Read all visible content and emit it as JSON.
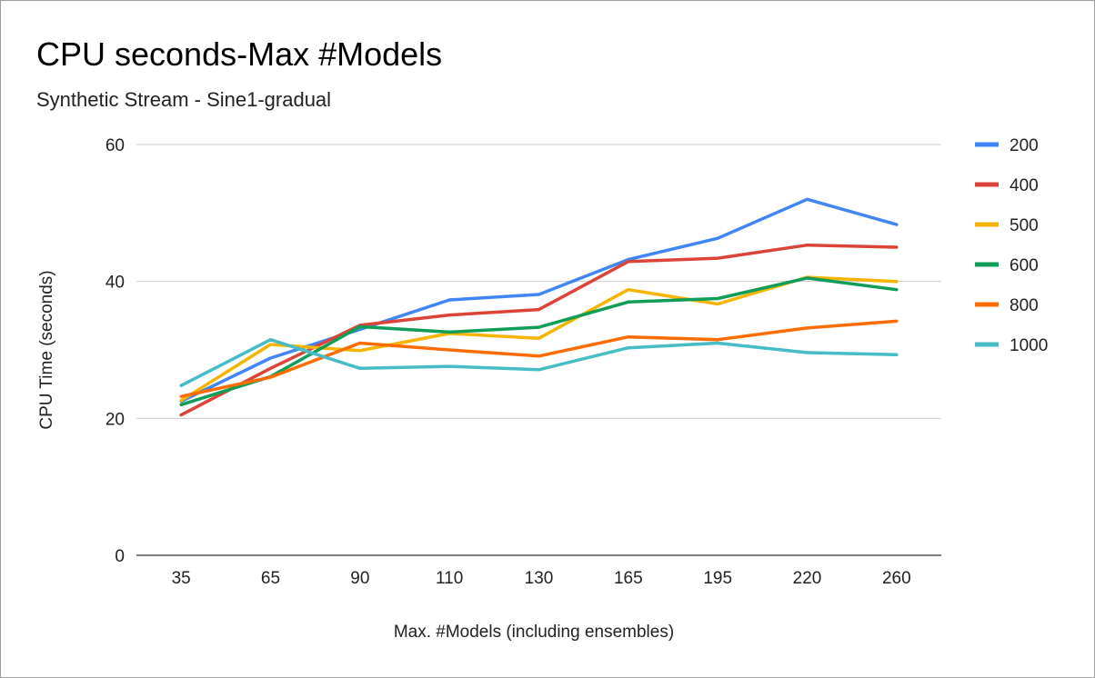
{
  "chart_data": {
    "type": "line",
    "title": "CPU seconds-Max #Models",
    "subtitle": "Synthetic Stream - Sine1-gradual",
    "xlabel": "Max. #Models (including ensembles)",
    "ylabel": "CPU Time (seconds)",
    "categories": [
      "35",
      "65",
      "90",
      "110",
      "130",
      "165",
      "195",
      "220",
      "260"
    ],
    "ylim": [
      0,
      60
    ],
    "yticks": [
      "0",
      "20",
      "40",
      "60"
    ],
    "grid": true,
    "legend_position": "right",
    "series": [
      {
        "name": "200",
        "color": "#4285f4",
        "values": [
          22.5,
          28.8,
          33.0,
          37.3,
          38.1,
          43.2,
          46.3,
          52.0,
          48.3
        ]
      },
      {
        "name": "400",
        "color": "#db4437",
        "values": [
          20.5,
          27.3,
          33.6,
          35.1,
          35.9,
          42.9,
          43.4,
          45.3,
          45.0
        ]
      },
      {
        "name": "500",
        "color": "#f4b400",
        "values": [
          22.6,
          30.8,
          29.9,
          32.4,
          31.7,
          38.8,
          36.7,
          40.6,
          40.0
        ]
      },
      {
        "name": "600",
        "color": "#0f9d58",
        "values": [
          22.0,
          26.1,
          33.4,
          32.6,
          33.3,
          37.0,
          37.5,
          40.5,
          38.8
        ]
      },
      {
        "name": "800",
        "color": "#ff6d01",
        "values": [
          23.2,
          26.0,
          31.0,
          30.0,
          29.1,
          31.9,
          31.5,
          33.2,
          34.2
        ]
      },
      {
        "name": "1000",
        "color": "#46bdc6",
        "values": [
          24.8,
          31.5,
          27.3,
          27.6,
          27.1,
          30.3,
          31.0,
          29.6,
          29.3
        ]
      }
    ]
  }
}
